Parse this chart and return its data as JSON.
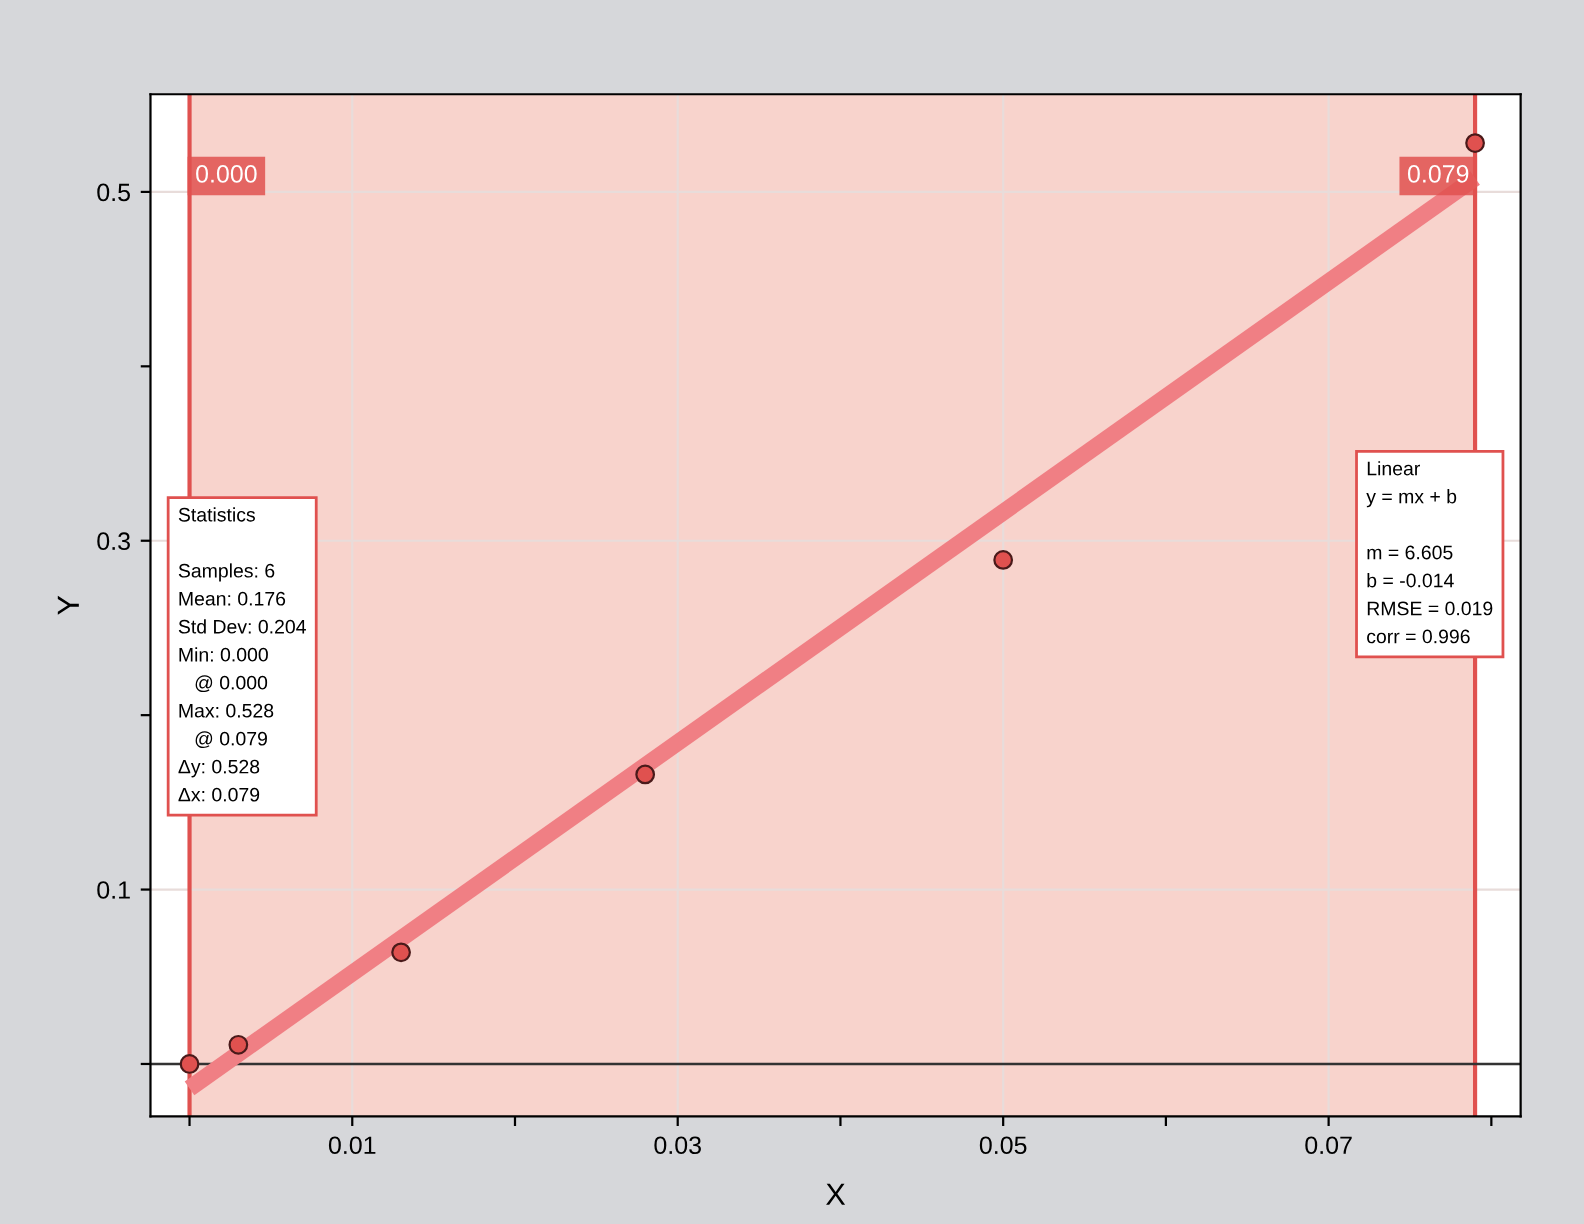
{
  "chart_data": {
    "type": "scatter",
    "xlabel": "X",
    "ylabel": "Y",
    "x": [
      0,
      0.003,
      0.013,
      0.028,
      0.05,
      0.079
    ],
    "series": [
      {
        "color": "#e0514f",
        "marker": "circle",
        "values": [
          0,
          0.011,
          0.064,
          0.166,
          0.289,
          0.528
        ]
      },
      {
        "type": "line",
        "marker": "none",
        "color": "#f07f84",
        "x": [
          0,
          0.079
        ],
        "values": [
          -0.014,
          0.508
        ]
      }
    ],
    "xlim": [
      -0.0024,
      0.0818
    ],
    "ylim": [
      -0.03,
      0.556
    ],
    "xticks": [
      {
        "value": 0,
        "label": null
      },
      0.01,
      {
        "value": 0.02,
        "label": null
      },
      0.03,
      {
        "value": 0.04,
        "label": null
      },
      0.05,
      {
        "value": 0.06,
        "label": null
      },
      0.07,
      {
        "value": 0.08,
        "label": null
      }
    ],
    "yticks": [
      {
        "value": 0,
        "label": null
      },
      0.1,
      {
        "value": 0.2,
        "label": null
      },
      0.3,
      {
        "value": 0.4,
        "label": null
      },
      0.5
    ],
    "grid": true,
    "bands": [
      {
        "axis": "x",
        "from": 0,
        "to": 0.079,
        "color": "#f8d3cc"
      }
    ],
    "ref_lines": [
      {
        "axis": "x",
        "value": 0,
        "label": "0.000",
        "color": "#e0514f"
      },
      {
        "axis": "x",
        "value": 0.079,
        "label": "0.079",
        "color": "#e0514f"
      },
      {
        "axis": "y",
        "value": 0,
        "color": "#333333"
      }
    ],
    "annotations": [
      "Statistics\n\nSamples: 6\nMean: 0.176\nStd Dev: 0.204\nMin: 0.000\n   @ 0.000\nMax: 0.528\n   @ 0.079\nΔy: 0.528\nΔx: 0.079",
      "Linear\ny = mx + b\n\nm = 6.605\nb = -0.014\nRMSE = 0.019\ncorr = 0.996"
    ]
  }
}
